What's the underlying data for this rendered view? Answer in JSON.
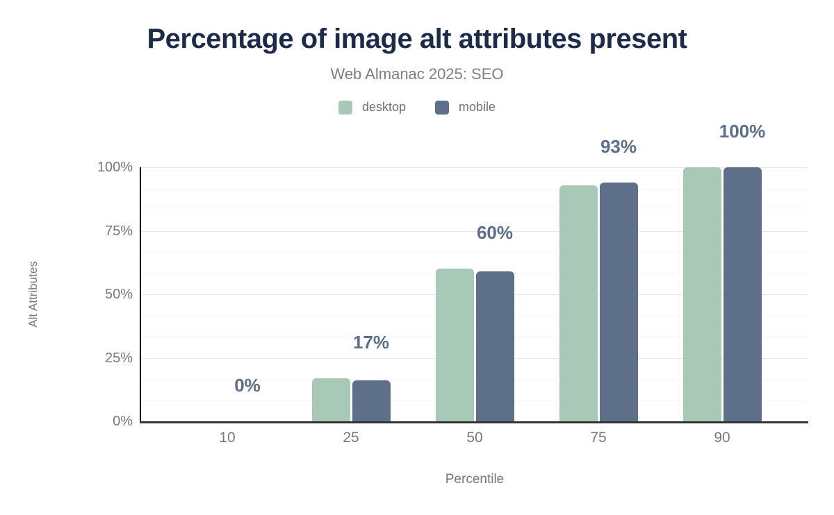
{
  "header": {
    "title": "Percentage of image alt attributes present",
    "subtitle": "Web Almanac 2025: SEO"
  },
  "legend": {
    "items": [
      {
        "label": "desktop",
        "color": "#a8c9b7"
      },
      {
        "label": "mobile",
        "color": "#5e7089"
      }
    ]
  },
  "chart_data": {
    "type": "bar",
    "title": "Percentage of image alt attributes present",
    "subtitle": "Web Almanac 2025: SEO",
    "categories": [
      "10",
      "25",
      "50",
      "75",
      "90"
    ],
    "series": [
      {
        "name": "desktop",
        "color": "#a8c9b7",
        "values": [
          0,
          17,
          60,
          93,
          100
        ]
      },
      {
        "name": "mobile",
        "color": "#5e7089",
        "values": [
          0,
          16,
          59,
          94,
          100
        ]
      }
    ],
    "data_labels": [
      "0%",
      "17%",
      "60%",
      "93%",
      "100%"
    ],
    "data_label_color": "#5b6e8c",
    "xlabel": "Percentile",
    "ylabel": "Alt Attributes",
    "ylim": [
      0,
      100
    ],
    "yticks": [
      {
        "value": 0,
        "label": "0%"
      },
      {
        "value": 25,
        "label": "25%"
      },
      {
        "value": 50,
        "label": "50%"
      },
      {
        "value": 75,
        "label": "75%"
      },
      {
        "value": 100,
        "label": "100%"
      }
    ],
    "grid": {
      "major_step": 25,
      "minor_divisions_per_major": 3,
      "major_color": "#e7e7e7",
      "minor_color": "#f5f5f5"
    },
    "legend_position": "top",
    "axis_text_color": "#75787b"
  }
}
